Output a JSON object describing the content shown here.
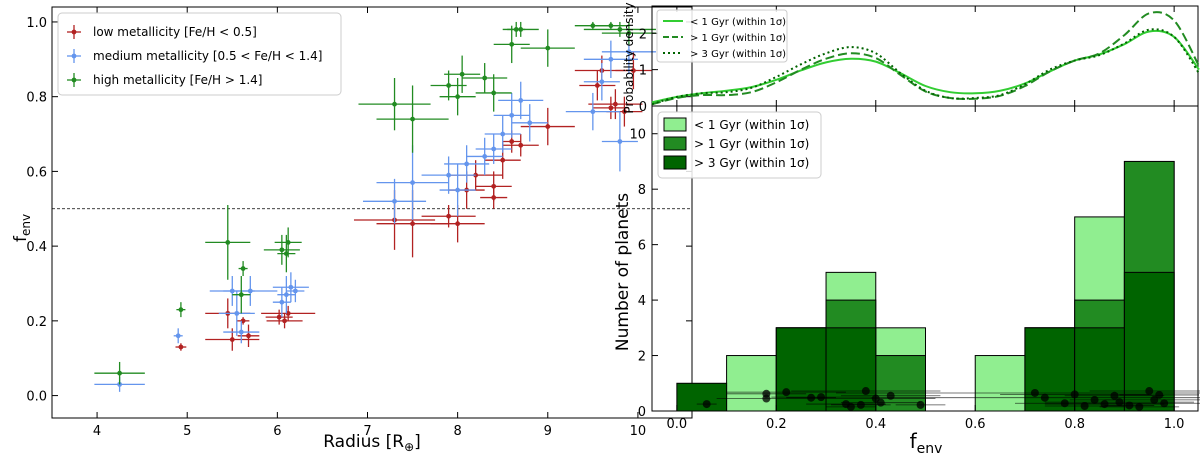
{
  "chart_data": [
    {
      "type": "scatter",
      "xlabel": "Radius [R",
      "xlabel_sub": "⊕",
      "xlabel_end": "]",
      "ylabel": "f",
      "ylabel_sub": "env",
      "xlim": [
        3.5,
        10.6
      ],
      "ylim": [
        -0.06,
        1.04
      ],
      "xticks": [
        "4",
        "5",
        "6",
        "7",
        "8",
        "9",
        "10"
      ],
      "yticks": [
        "0.0",
        "0.2",
        "0.4",
        "0.6",
        "0.8",
        "1.0"
      ],
      "reference_line": {
        "y": 0.5,
        "style": "dashed"
      },
      "legend": {
        "position": "top-left"
      },
      "series": [
        {
          "name": "low metallicity [Fe/H < 0.5]",
          "color": "#b22222",
          "points": [
            {
              "x": 4.93,
              "y": 0.13,
              "xerr": 0.06,
              "yerr": 0.01
            },
            {
              "x": 5.45,
              "y": 0.22,
              "xerr": 0.25,
              "yerr": 0.04
            },
            {
              "x": 5.5,
              "y": 0.15,
              "xerr": 0.3,
              "yerr": 0.03
            },
            {
              "x": 5.62,
              "y": 0.2,
              "xerr": 0.07,
              "yerr": 0.01
            },
            {
              "x": 5.68,
              "y": 0.16,
              "xerr": 0.12,
              "yerr": 0.03
            },
            {
              "x": 6.02,
              "y": 0.21,
              "xerr": 0.15,
              "yerr": 0.02
            },
            {
              "x": 6.08,
              "y": 0.2,
              "xerr": 0.2,
              "yerr": 0.02
            },
            {
              "x": 6.12,
              "y": 0.22,
              "xerr": 0.3,
              "yerr": 0.02
            },
            {
              "x": 7.3,
              "y": 0.47,
              "xerr": 0.45,
              "yerr": 0.08
            },
            {
              "x": 7.5,
              "y": 0.46,
              "xerr": 0.4,
              "yerr": 0.09
            },
            {
              "x": 7.9,
              "y": 0.48,
              "xerr": 0.3,
              "yerr": 0.03
            },
            {
              "x": 8.0,
              "y": 0.46,
              "xerr": 0.3,
              "yerr": 0.05
            },
            {
              "x": 8.1,
              "y": 0.55,
              "xerr": 0.2,
              "yerr": 0.05
            },
            {
              "x": 8.2,
              "y": 0.59,
              "xerr": 0.3,
              "yerr": 0.04
            },
            {
              "x": 8.4,
              "y": 0.53,
              "xerr": 0.15,
              "yerr": 0.03
            },
            {
              "x": 8.4,
              "y": 0.56,
              "xerr": 0.2,
              "yerr": 0.04
            },
            {
              "x": 8.5,
              "y": 0.63,
              "xerr": 0.2,
              "yerr": 0.05
            },
            {
              "x": 8.6,
              "y": 0.68,
              "xerr": 0.1,
              "yerr": 0.03
            },
            {
              "x": 8.7,
              "y": 0.67,
              "xerr": 0.2,
              "yerr": 0.03
            },
            {
              "x": 9.0,
              "y": 0.72,
              "xerr": 0.3,
              "yerr": 0.05
            },
            {
              "x": 9.55,
              "y": 0.83,
              "xerr": 0.2,
              "yerr": 0.04
            },
            {
              "x": 9.6,
              "y": 0.87,
              "xerr": 0.3,
              "yerr": 0.04
            },
            {
              "x": 9.7,
              "y": 0.77,
              "xerr": 0.2,
              "yerr": 0.03
            },
            {
              "x": 9.75,
              "y": 0.78,
              "xerr": 0.3,
              "yerr": 0.04
            },
            {
              "x": 9.85,
              "y": 0.76,
              "xerr": 0.2,
              "yerr": 0.04
            },
            {
              "x": 9.95,
              "y": 0.87,
              "xerr": 0.2,
              "yerr": 0.05
            }
          ]
        },
        {
          "name": "medium metallicity [0.5 < Fe/H < 1.4]",
          "color": "#6495ed",
          "points": [
            {
              "x": 4.25,
              "y": 0.03,
              "xerr": 0.28,
              "yerr": 0.02
            },
            {
              "x": 4.9,
              "y": 0.16,
              "xerr": 0.05,
              "yerr": 0.02
            },
            {
              "x": 5.5,
              "y": 0.28,
              "xerr": 0.25,
              "yerr": 0.04
            },
            {
              "x": 5.55,
              "y": 0.22,
              "xerr": 0.2,
              "yerr": 0.06
            },
            {
              "x": 5.6,
              "y": 0.17,
              "xerr": 0.2,
              "yerr": 0.03
            },
            {
              "x": 5.7,
              "y": 0.28,
              "xerr": 0.3,
              "yerr": 0.04
            },
            {
              "x": 6.05,
              "y": 0.25,
              "xerr": 0.1,
              "yerr": 0.04
            },
            {
              "x": 6.1,
              "y": 0.27,
              "xerr": 0.1,
              "yerr": 0.05
            },
            {
              "x": 6.15,
              "y": 0.29,
              "xerr": 0.2,
              "yerr": 0.04
            },
            {
              "x": 6.2,
              "y": 0.28,
              "xerr": 0.1,
              "yerr": 0.03
            },
            {
              "x": 7.3,
              "y": 0.52,
              "xerr": 0.35,
              "yerr": 0.06
            },
            {
              "x": 7.5,
              "y": 0.57,
              "xerr": 0.4,
              "yerr": 0.1
            },
            {
              "x": 7.9,
              "y": 0.59,
              "xerr": 0.3,
              "yerr": 0.05
            },
            {
              "x": 8.0,
              "y": 0.55,
              "xerr": 0.2,
              "yerr": 0.07
            },
            {
              "x": 8.1,
              "y": 0.62,
              "xerr": 0.25,
              "yerr": 0.05
            },
            {
              "x": 8.3,
              "y": 0.64,
              "xerr": 0.2,
              "yerr": 0.05
            },
            {
              "x": 8.4,
              "y": 0.66,
              "xerr": 0.2,
              "yerr": 0.04
            },
            {
              "x": 8.5,
              "y": 0.7,
              "xerr": 0.2,
              "yerr": 0.05
            },
            {
              "x": 8.6,
              "y": 0.75,
              "xerr": 0.2,
              "yerr": 0.06
            },
            {
              "x": 8.7,
              "y": 0.79,
              "xerr": 0.25,
              "yerr": 0.05
            },
            {
              "x": 8.8,
              "y": 0.73,
              "xerr": 0.2,
              "yerr": 0.05
            },
            {
              "x": 9.5,
              "y": 0.76,
              "xerr": 0.3,
              "yerr": 0.05
            },
            {
              "x": 9.6,
              "y": 0.84,
              "xerr": 0.2,
              "yerr": 0.05
            },
            {
              "x": 9.7,
              "y": 0.9,
              "xerr": 0.3,
              "yerr": 0.05
            },
            {
              "x": 9.8,
              "y": 0.68,
              "xerr": 0.2,
              "yerr": 0.08
            },
            {
              "x": 9.9,
              "y": 0.92,
              "xerr": 0.3,
              "yerr": 0.06
            }
          ]
        },
        {
          "name": "high metallicity [Fe/H > 1.4]",
          "color": "#228b22",
          "points": [
            {
              "x": 4.25,
              "y": 0.06,
              "xerr": 0.28,
              "yerr": 0.03
            },
            {
              "x": 4.93,
              "y": 0.23,
              "xerr": 0.05,
              "yerr": 0.02
            },
            {
              "x": 5.45,
              "y": 0.41,
              "xerr": 0.25,
              "yerr": 0.1
            },
            {
              "x": 5.6,
              "y": 0.27,
              "xerr": 0.1,
              "yerr": 0.05
            },
            {
              "x": 5.62,
              "y": 0.34,
              "xerr": 0.05,
              "yerr": 0.02
            },
            {
              "x": 6.05,
              "y": 0.39,
              "xerr": 0.2,
              "yerr": 0.04
            },
            {
              "x": 6.1,
              "y": 0.38,
              "xerr": 0.1,
              "yerr": 0.05
            },
            {
              "x": 6.12,
              "y": 0.41,
              "xerr": 0.15,
              "yerr": 0.04
            },
            {
              "x": 7.3,
              "y": 0.78,
              "xerr": 0.4,
              "yerr": 0.07
            },
            {
              "x": 7.5,
              "y": 0.74,
              "xerr": 0.4,
              "yerr": 0.09
            },
            {
              "x": 7.9,
              "y": 0.83,
              "xerr": 0.2,
              "yerr": 0.04
            },
            {
              "x": 8.0,
              "y": 0.8,
              "xerr": 0.2,
              "yerr": 0.05
            },
            {
              "x": 8.05,
              "y": 0.86,
              "xerr": 0.2,
              "yerr": 0.05
            },
            {
              "x": 8.3,
              "y": 0.85,
              "xerr": 0.25,
              "yerr": 0.04
            },
            {
              "x": 8.4,
              "y": 0.81,
              "xerr": 0.2,
              "yerr": 0.05
            },
            {
              "x": 8.6,
              "y": 0.94,
              "xerr": 0.2,
              "yerr": 0.05
            },
            {
              "x": 8.65,
              "y": 0.98,
              "xerr": 0.1,
              "yerr": 0.02
            },
            {
              "x": 8.7,
              "y": 0.98,
              "xerr": 0.2,
              "yerr": 0.02
            },
            {
              "x": 9.0,
              "y": 0.93,
              "xerr": 0.3,
              "yerr": 0.05
            },
            {
              "x": 9.5,
              "y": 0.99,
              "xerr": 0.2,
              "yerr": 0.01
            },
            {
              "x": 9.7,
              "y": 0.99,
              "xerr": 0.2,
              "yerr": 0.01
            },
            {
              "x": 9.8,
              "y": 0.98,
              "xerr": 0.4,
              "yerr": 0.02
            },
            {
              "x": 9.9,
              "y": 0.97,
              "xerr": 0.3,
              "yerr": 0.03
            }
          ]
        }
      ]
    },
    {
      "type": "line",
      "ylabel": "Probability density",
      "xlim": [
        -0.05,
        1.05
      ],
      "ylim": [
        0,
        2.75
      ],
      "yticks": [
        "0",
        "1",
        "2"
      ],
      "legend": {
        "position": "top-left"
      },
      "series": [
        {
          "name": "< 1 Gyr (within 1σ)",
          "style": "solid",
          "color": "#32cd32",
          "x": [
            -0.05,
            0.0,
            0.05,
            0.1,
            0.15,
            0.2,
            0.25,
            0.3,
            0.35,
            0.4,
            0.45,
            0.5,
            0.55,
            0.6,
            0.65,
            0.7,
            0.75,
            0.8,
            0.85,
            0.9,
            0.95,
            1.0,
            1.05
          ],
          "y": [
            0.1,
            0.25,
            0.35,
            0.42,
            0.52,
            0.72,
            0.98,
            1.2,
            1.3,
            1.22,
            0.9,
            0.55,
            0.38,
            0.35,
            0.42,
            0.62,
            0.95,
            1.25,
            1.42,
            1.7,
            2.05,
            1.9,
            1.0
          ]
        },
        {
          "name": "> 1 Gyr (within 1σ)",
          "style": "dashed",
          "color": "#228b22",
          "x": [
            -0.05,
            0.0,
            0.05,
            0.1,
            0.15,
            0.2,
            0.25,
            0.3,
            0.35,
            0.4,
            0.45,
            0.5,
            0.55,
            0.6,
            0.65,
            0.7,
            0.75,
            0.8,
            0.85,
            0.9,
            0.95,
            1.0,
            1.05
          ],
          "y": [
            0.05,
            0.22,
            0.3,
            0.3,
            0.38,
            0.65,
            1.0,
            1.3,
            1.45,
            1.32,
            0.85,
            0.4,
            0.22,
            0.2,
            0.28,
            0.55,
            0.95,
            1.25,
            1.45,
            1.95,
            2.55,
            2.35,
            1.1
          ]
        },
        {
          "name": "> 3 Gyr (within 1σ)",
          "style": "dotted",
          "color": "#006400",
          "x": [
            -0.05,
            0.0,
            0.05,
            0.1,
            0.15,
            0.2,
            0.25,
            0.3,
            0.35,
            0.4,
            0.45,
            0.5,
            0.55,
            0.6,
            0.65,
            0.7,
            0.75,
            0.8,
            0.85,
            0.9,
            0.95,
            1.0,
            1.05
          ],
          "y": [
            0.05,
            0.25,
            0.35,
            0.38,
            0.5,
            0.8,
            1.15,
            1.45,
            1.62,
            1.45,
            0.9,
            0.42,
            0.22,
            0.22,
            0.3,
            0.6,
            1.0,
            1.25,
            1.4,
            1.72,
            2.1,
            1.9,
            0.9
          ]
        }
      ]
    },
    {
      "type": "bar",
      "xlabel": "f",
      "xlabel_sub": "env",
      "ylabel": "Number of planets",
      "xlim": [
        -0.05,
        1.05
      ],
      "ylim": [
        0,
        11
      ],
      "xticks": [
        "0.0",
        "0.2",
        "0.4",
        "0.6",
        "0.8",
        "1.0"
      ],
      "yticks": [
        "0",
        "2",
        "4",
        "6",
        "8",
        "10"
      ],
      "bin_edges": [
        0.0,
        0.1,
        0.2,
        0.3,
        0.4,
        0.5,
        0.6,
        0.7,
        0.8,
        0.9,
        1.0
      ],
      "legend": {
        "position": "top-left"
      },
      "series": [
        {
          "name": "< 1 Gyr (within 1σ)",
          "color": "#90ee90",
          "values": [
            0,
            2,
            3,
            5,
            3,
            0,
            2,
            3,
            7,
            9
          ]
        },
        {
          "name": "> 1 Gyr (within 1σ)",
          "color": "#228b22",
          "values": [
            0,
            0,
            3,
            4,
            2,
            0,
            0,
            3,
            4,
            9
          ]
        },
        {
          "name": "> 3 Gyr (within 1σ)",
          "color": "#006400",
          "values": [
            1,
            0,
            3,
            3,
            0,
            0,
            0,
            3,
            3,
            5
          ]
        }
      ],
      "points": [
        {
          "x": 0.06,
          "y": 0.25,
          "xerr": 0.02
        },
        {
          "x": 0.18,
          "y": 0.45,
          "xerr": 0.1
        },
        {
          "x": 0.18,
          "y": 0.62,
          "xerr": 0.08
        },
        {
          "x": 0.22,
          "y": 0.68,
          "xerr": 0.12
        },
        {
          "x": 0.27,
          "y": 0.48,
          "xerr": 0.05
        },
        {
          "x": 0.29,
          "y": 0.5,
          "xerr": 0.1
        },
        {
          "x": 0.34,
          "y": 0.25,
          "xerr": 0.08
        },
        {
          "x": 0.35,
          "y": 0.15,
          "xerr": 0.05
        },
        {
          "x": 0.37,
          "y": 0.22,
          "xerr": 0.06
        },
        {
          "x": 0.38,
          "y": 0.72,
          "xerr": 0.15
        },
        {
          "x": 0.4,
          "y": 0.45,
          "xerr": 0.12
        },
        {
          "x": 0.41,
          "y": 0.3,
          "xerr": 0.08
        },
        {
          "x": 0.43,
          "y": 0.55,
          "xerr": 0.1
        },
        {
          "x": 0.49,
          "y": 0.22,
          "xerr": 0.05
        },
        {
          "x": 0.72,
          "y": 0.65,
          "xerr": 0.4
        },
        {
          "x": 0.74,
          "y": 0.48,
          "xerr": 0.35
        },
        {
          "x": 0.78,
          "y": 0.28,
          "xerr": 0.1
        },
        {
          "x": 0.8,
          "y": 0.6,
          "xerr": 0.15
        },
        {
          "x": 0.82,
          "y": 0.18,
          "xerr": 0.08
        },
        {
          "x": 0.84,
          "y": 0.4,
          "xerr": 0.05
        },
        {
          "x": 0.86,
          "y": 0.25,
          "xerr": 0.12
        },
        {
          "x": 0.88,
          "y": 0.55,
          "xerr": 0.1
        },
        {
          "x": 0.89,
          "y": 0.32,
          "xerr": 0.15
        },
        {
          "x": 0.91,
          "y": 0.2,
          "xerr": 0.05
        },
        {
          "x": 0.93,
          "y": 0.15,
          "xerr": 0.08
        },
        {
          "x": 0.95,
          "y": 0.72,
          "xerr": 0.12
        },
        {
          "x": 0.96,
          "y": 0.4,
          "xerr": 0.1
        },
        {
          "x": 0.97,
          "y": 0.58,
          "xerr": 0.08
        },
        {
          "x": 0.98,
          "y": 0.28,
          "xerr": 0.1
        }
      ]
    }
  ]
}
